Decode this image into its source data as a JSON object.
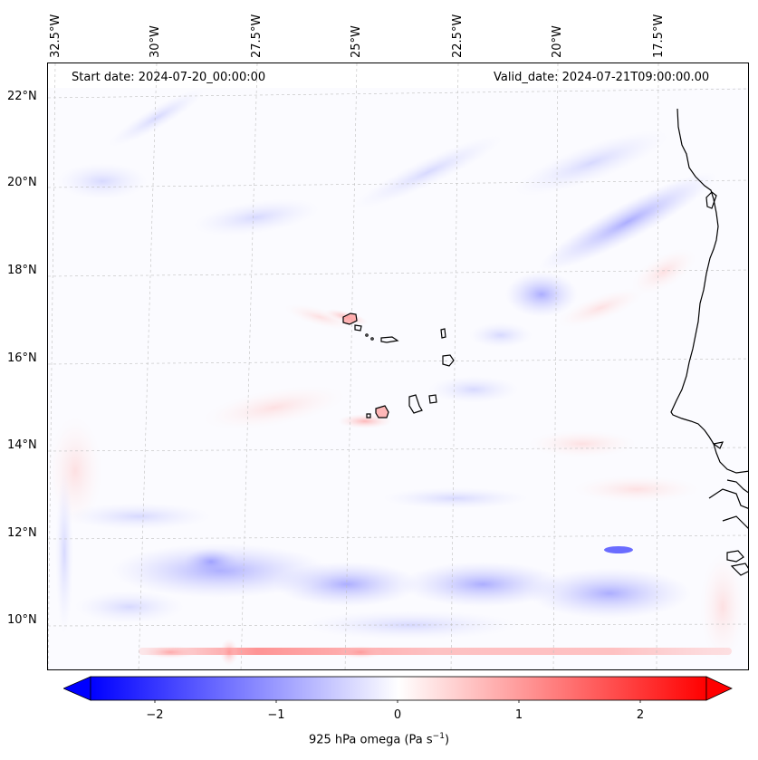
{
  "header": {
    "start_date": "Start date: 2024-07-20_00:00:00",
    "valid_date": "Valid_date: 2024-07-21T09:00:00.00"
  },
  "map": {
    "lon_labels": [
      "32.5°W",
      "30°W",
      "27.5°W",
      "25°W",
      "22.5°W",
      "20°W",
      "17.5°W"
    ],
    "lat_labels": [
      "22°N",
      "20°N",
      "18°N",
      "16°N",
      "14°N",
      "12°N",
      "10°N"
    ],
    "coastline_color": "#000000",
    "gridline_color": "#bfbfbf"
  },
  "colorbar": {
    "ticks": [
      "−2",
      "−1",
      "0",
      "1",
      "2"
    ],
    "label_prefix": "925 hPa omega (Pa s",
    "label_exp": "−1",
    "label_suffix": ")",
    "min_color": "#0000ff",
    "mid_color": "#ffffff",
    "max_color": "#ff0000"
  }
}
